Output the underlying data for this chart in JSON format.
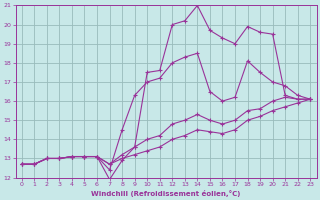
{
  "title": "",
  "xlabel": "Windchill (Refroidissement éolien,°C)",
  "bg_color": "#c8e8e8",
  "line_color": "#993399",
  "grid_color": "#99bbbb",
  "xlim": [
    -0.5,
    23.5
  ],
  "ylim": [
    12,
    21
  ],
  "xticks": [
    0,
    1,
    2,
    3,
    4,
    5,
    6,
    7,
    8,
    9,
    10,
    11,
    12,
    13,
    14,
    15,
    16,
    17,
    18,
    19,
    20,
    21,
    22,
    23
  ],
  "yticks": [
    12,
    13,
    14,
    15,
    16,
    17,
    18,
    19,
    20,
    21
  ],
  "series": [
    {
      "x": [
        0,
        1,
        2,
        3,
        4,
        5,
        6,
        7,
        8,
        9,
        10,
        11,
        12,
        13,
        14,
        15,
        16,
        17,
        18,
        19,
        20,
        21,
        22,
        23
      ],
      "y": [
        12.7,
        12.7,
        13.0,
        13.0,
        13.1,
        13.1,
        13.1,
        11.9,
        12.9,
        13.6,
        17.5,
        17.6,
        20.0,
        20.2,
        21.0,
        19.7,
        19.3,
        19.0,
        19.9,
        19.6,
        19.5,
        16.3,
        16.1,
        16.1
      ]
    },
    {
      "x": [
        0,
        1,
        2,
        3,
        4,
        5,
        6,
        7,
        8,
        9,
        10,
        11,
        12,
        13,
        14,
        15,
        16,
        17,
        18,
        19,
        20,
        21,
        22,
        23
      ],
      "y": [
        12.7,
        12.7,
        13.0,
        13.0,
        13.1,
        13.1,
        13.1,
        12.4,
        14.5,
        16.3,
        17.0,
        17.2,
        18.0,
        18.3,
        18.5,
        16.5,
        16.0,
        16.2,
        18.1,
        17.5,
        17.0,
        16.8,
        16.3,
        16.1
      ]
    },
    {
      "x": [
        0,
        1,
        2,
        3,
        4,
        5,
        6,
        7,
        8,
        9,
        10,
        11,
        12,
        13,
        14,
        15,
        16,
        17,
        18,
        19,
        20,
        21,
        22,
        23
      ],
      "y": [
        12.7,
        12.7,
        13.0,
        13.0,
        13.1,
        13.1,
        13.1,
        12.7,
        13.2,
        13.6,
        14.0,
        14.2,
        14.8,
        15.0,
        15.3,
        15.0,
        14.8,
        15.0,
        15.5,
        15.6,
        16.0,
        16.2,
        16.1,
        16.1
      ]
    },
    {
      "x": [
        0,
        1,
        2,
        3,
        4,
        5,
        6,
        7,
        8,
        9,
        10,
        11,
        12,
        13,
        14,
        15,
        16,
        17,
        18,
        19,
        20,
        21,
        22,
        23
      ],
      "y": [
        12.7,
        12.7,
        13.0,
        13.0,
        13.1,
        13.1,
        13.1,
        12.7,
        13.0,
        13.2,
        13.4,
        13.6,
        14.0,
        14.2,
        14.5,
        14.4,
        14.3,
        14.5,
        15.0,
        15.2,
        15.5,
        15.7,
        15.9,
        16.1
      ]
    }
  ]
}
